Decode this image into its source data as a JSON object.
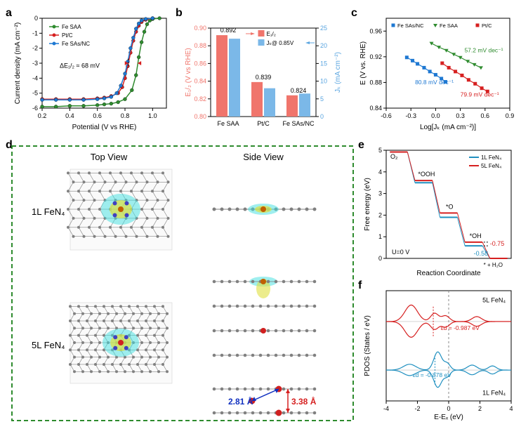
{
  "panel_a": {
    "label": "a",
    "xlabel": "Potential (V vs RHE)",
    "ylabel": "Current density (mA cm⁻²)",
    "xlim": [
      0.2,
      1.1
    ],
    "xtick_step": 0.2,
    "ylim": [
      -6,
      0
    ],
    "ytick_step": 1,
    "annotation": "ΔE₁/₂ ≈ 68 mV",
    "series": [
      {
        "name": "Fe SAA",
        "color": "#2e8b2e",
        "marker": "circle",
        "x": [
          0.2,
          0.3,
          0.4,
          0.5,
          0.6,
          0.65,
          0.7,
          0.75,
          0.8,
          0.85,
          0.88,
          0.9,
          0.92,
          0.94,
          0.96,
          0.98,
          1.0,
          1.05
        ],
        "y": [
          -5.9,
          -5.9,
          -5.85,
          -5.85,
          -5.8,
          -5.75,
          -5.7,
          -5.6,
          -5.4,
          -4.8,
          -3.8,
          -2.6,
          -1.6,
          -0.9,
          -0.4,
          -0.15,
          -0.05,
          0
        ]
      },
      {
        "name": "Pt/C",
        "color": "#d62020",
        "marker": "circle",
        "x": [
          0.2,
          0.3,
          0.4,
          0.5,
          0.6,
          0.65,
          0.7,
          0.75,
          0.78,
          0.8,
          0.82,
          0.84,
          0.86,
          0.88,
          0.9,
          0.92,
          0.95,
          1.0
        ],
        "y": [
          -5.4,
          -5.4,
          -5.4,
          -5.4,
          -5.35,
          -5.3,
          -5.2,
          -5.0,
          -4.6,
          -4.0,
          -3.2,
          -2.3,
          -1.5,
          -0.9,
          -0.5,
          -0.25,
          -0.1,
          0
        ]
      },
      {
        "name": "Fe SAs/NC",
        "color": "#1e78d2",
        "marker": "circle",
        "x": [
          0.2,
          0.3,
          0.4,
          0.5,
          0.6,
          0.65,
          0.7,
          0.74,
          0.77,
          0.8,
          0.82,
          0.84,
          0.86,
          0.88,
          0.9,
          0.92,
          0.95,
          1.0
        ],
        "y": [
          -5.45,
          -5.45,
          -5.45,
          -5.45,
          -5.4,
          -5.35,
          -5.25,
          -5.0,
          -4.5,
          -3.7,
          -2.9,
          -2.0,
          -1.3,
          -0.7,
          -0.35,
          -0.15,
          -0.05,
          0
        ]
      }
    ],
    "label_fontsize": 10,
    "tick_fontsize": 9
  },
  "panel_b": {
    "label": "b",
    "categories": [
      "Fe SAA",
      "Pt/C",
      "Fe SAs/NC"
    ],
    "left_axis": {
      "label": "E₁/₂ (V vs RHE)",
      "color": "#f0756c",
      "ylim": [
        0.8,
        0.9
      ],
      "ytick_step": 0.02
    },
    "right_axis": {
      "label": "Jₖ (mA cm⁻²)",
      "color": "#5aa5e0",
      "ylim": [
        0,
        25
      ],
      "ytick_step": 5
    },
    "e12_values": [
      0.892,
      0.839,
      0.824
    ],
    "e12_labels": [
      "0.892",
      "0.839",
      "0.824"
    ],
    "jk_values": [
      22,
      8,
      6.5
    ],
    "legend": {
      "e12": "E₁/₂",
      "jk": "Jₖ@ 0.85V"
    },
    "bar_colors": {
      "e12": "#f0756c",
      "jk": "#7bb8e8"
    },
    "label_fontsize": 10,
    "tick_fontsize": 9
  },
  "panel_c": {
    "label": "c",
    "xlabel": "Log[Jₖ (mA cm⁻²)]",
    "ylabel": "E (V vs. RHE)",
    "xlim": [
      -0.6,
      0.9
    ],
    "xtick_step": 0.3,
    "ylim": [
      0.84,
      0.98
    ],
    "ytick_step": 0.04,
    "series": [
      {
        "name": "Fe SAs/NC",
        "color": "#1e78d2",
        "marker": "square",
        "x": [
          -0.35,
          -0.28,
          -0.22,
          -0.14,
          -0.07,
          0.0,
          0.07,
          0.12
        ],
        "y": [
          0.919,
          0.914,
          0.909,
          0.903,
          0.897,
          0.892,
          0.886,
          0.881
        ],
        "tafel": "80.8 mV dec⁻¹"
      },
      {
        "name": "Fe SAA",
        "color": "#2e8b2e",
        "marker": "triangle-down",
        "x": [
          -0.05,
          0.04,
          0.13,
          0.22,
          0.3,
          0.39,
          0.47,
          0.55
        ],
        "y": [
          0.941,
          0.935,
          0.93,
          0.924,
          0.919,
          0.913,
          0.908,
          0.903
        ],
        "tafel": "57.2 mV dec⁻¹"
      },
      {
        "name": "Pt/C",
        "color": "#d62020",
        "marker": "square",
        "x": [
          0.08,
          0.16,
          0.24,
          0.32,
          0.4,
          0.48,
          0.56,
          0.63
        ],
        "y": [
          0.91,
          0.903,
          0.897,
          0.891,
          0.884,
          0.878,
          0.871,
          0.866
        ],
        "tafel": "79.9 mV dec⁻¹"
      }
    ],
    "label_fontsize": 10,
    "tick_fontsize": 9
  },
  "panel_d": {
    "label": "d",
    "border_color": "#2e8b2e",
    "titles": {
      "top": "Top View",
      "side": "Side View"
    },
    "labels": [
      "1L FeN₄",
      "5L FeN₄"
    ],
    "distances": [
      {
        "text": "2.81 Å",
        "color": "#1030c0"
      },
      {
        "text": "3.38 Å",
        "color": "#d62020"
      }
    ],
    "atom_colors": {
      "C": "#808080",
      "N": "#4040c0",
      "Fe": "#c06000",
      "density_pos": "#e0e040",
      "density_neg": "#40e0e0"
    },
    "title_fontsize": 13,
    "label_fontsize": 13
  },
  "panel_e": {
    "label": "e",
    "xlabel": "Reaction Coordinate",
    "ylabel": "Free energy (eV)",
    "ylim": [
      0,
      5
    ],
    "ytick_step": 1,
    "u_label": "U=0 V",
    "intermediates": [
      "O₂",
      "*OOH",
      "*O",
      "*OH",
      "* + H₂O"
    ],
    "series": [
      {
        "name": "1L FeN₄",
        "color": "#2090c0",
        "steps": [
          4.92,
          3.5,
          1.9,
          0.58,
          0
        ],
        "deltaG": "-0.58"
      },
      {
        "name": "5L FeN₄",
        "color": "#d62020",
        "steps": [
          4.92,
          3.6,
          2.1,
          0.75,
          0
        ],
        "deltaG": "-0.75"
      }
    ],
    "label_fontsize": 10,
    "tick_fontsize": 9
  },
  "panel_f": {
    "label": "f",
    "xlabel": "E-Eₓ (eV)",
    "ylabel": "PDOS (States / eV)",
    "xlim": [
      -4,
      4
    ],
    "xtick_step": 2,
    "series": [
      {
        "name": "5L FeN₄",
        "color": "#d62020",
        "ed": "εd = -0.987 eV",
        "offset": 1
      },
      {
        "name": "1L FeN₄",
        "color": "#2090c0",
        "ed": "εd = -0.878 eV",
        "offset": 0
      }
    ],
    "label_fontsize": 10,
    "tick_fontsize": 9
  },
  "background_color": "#ffffff"
}
